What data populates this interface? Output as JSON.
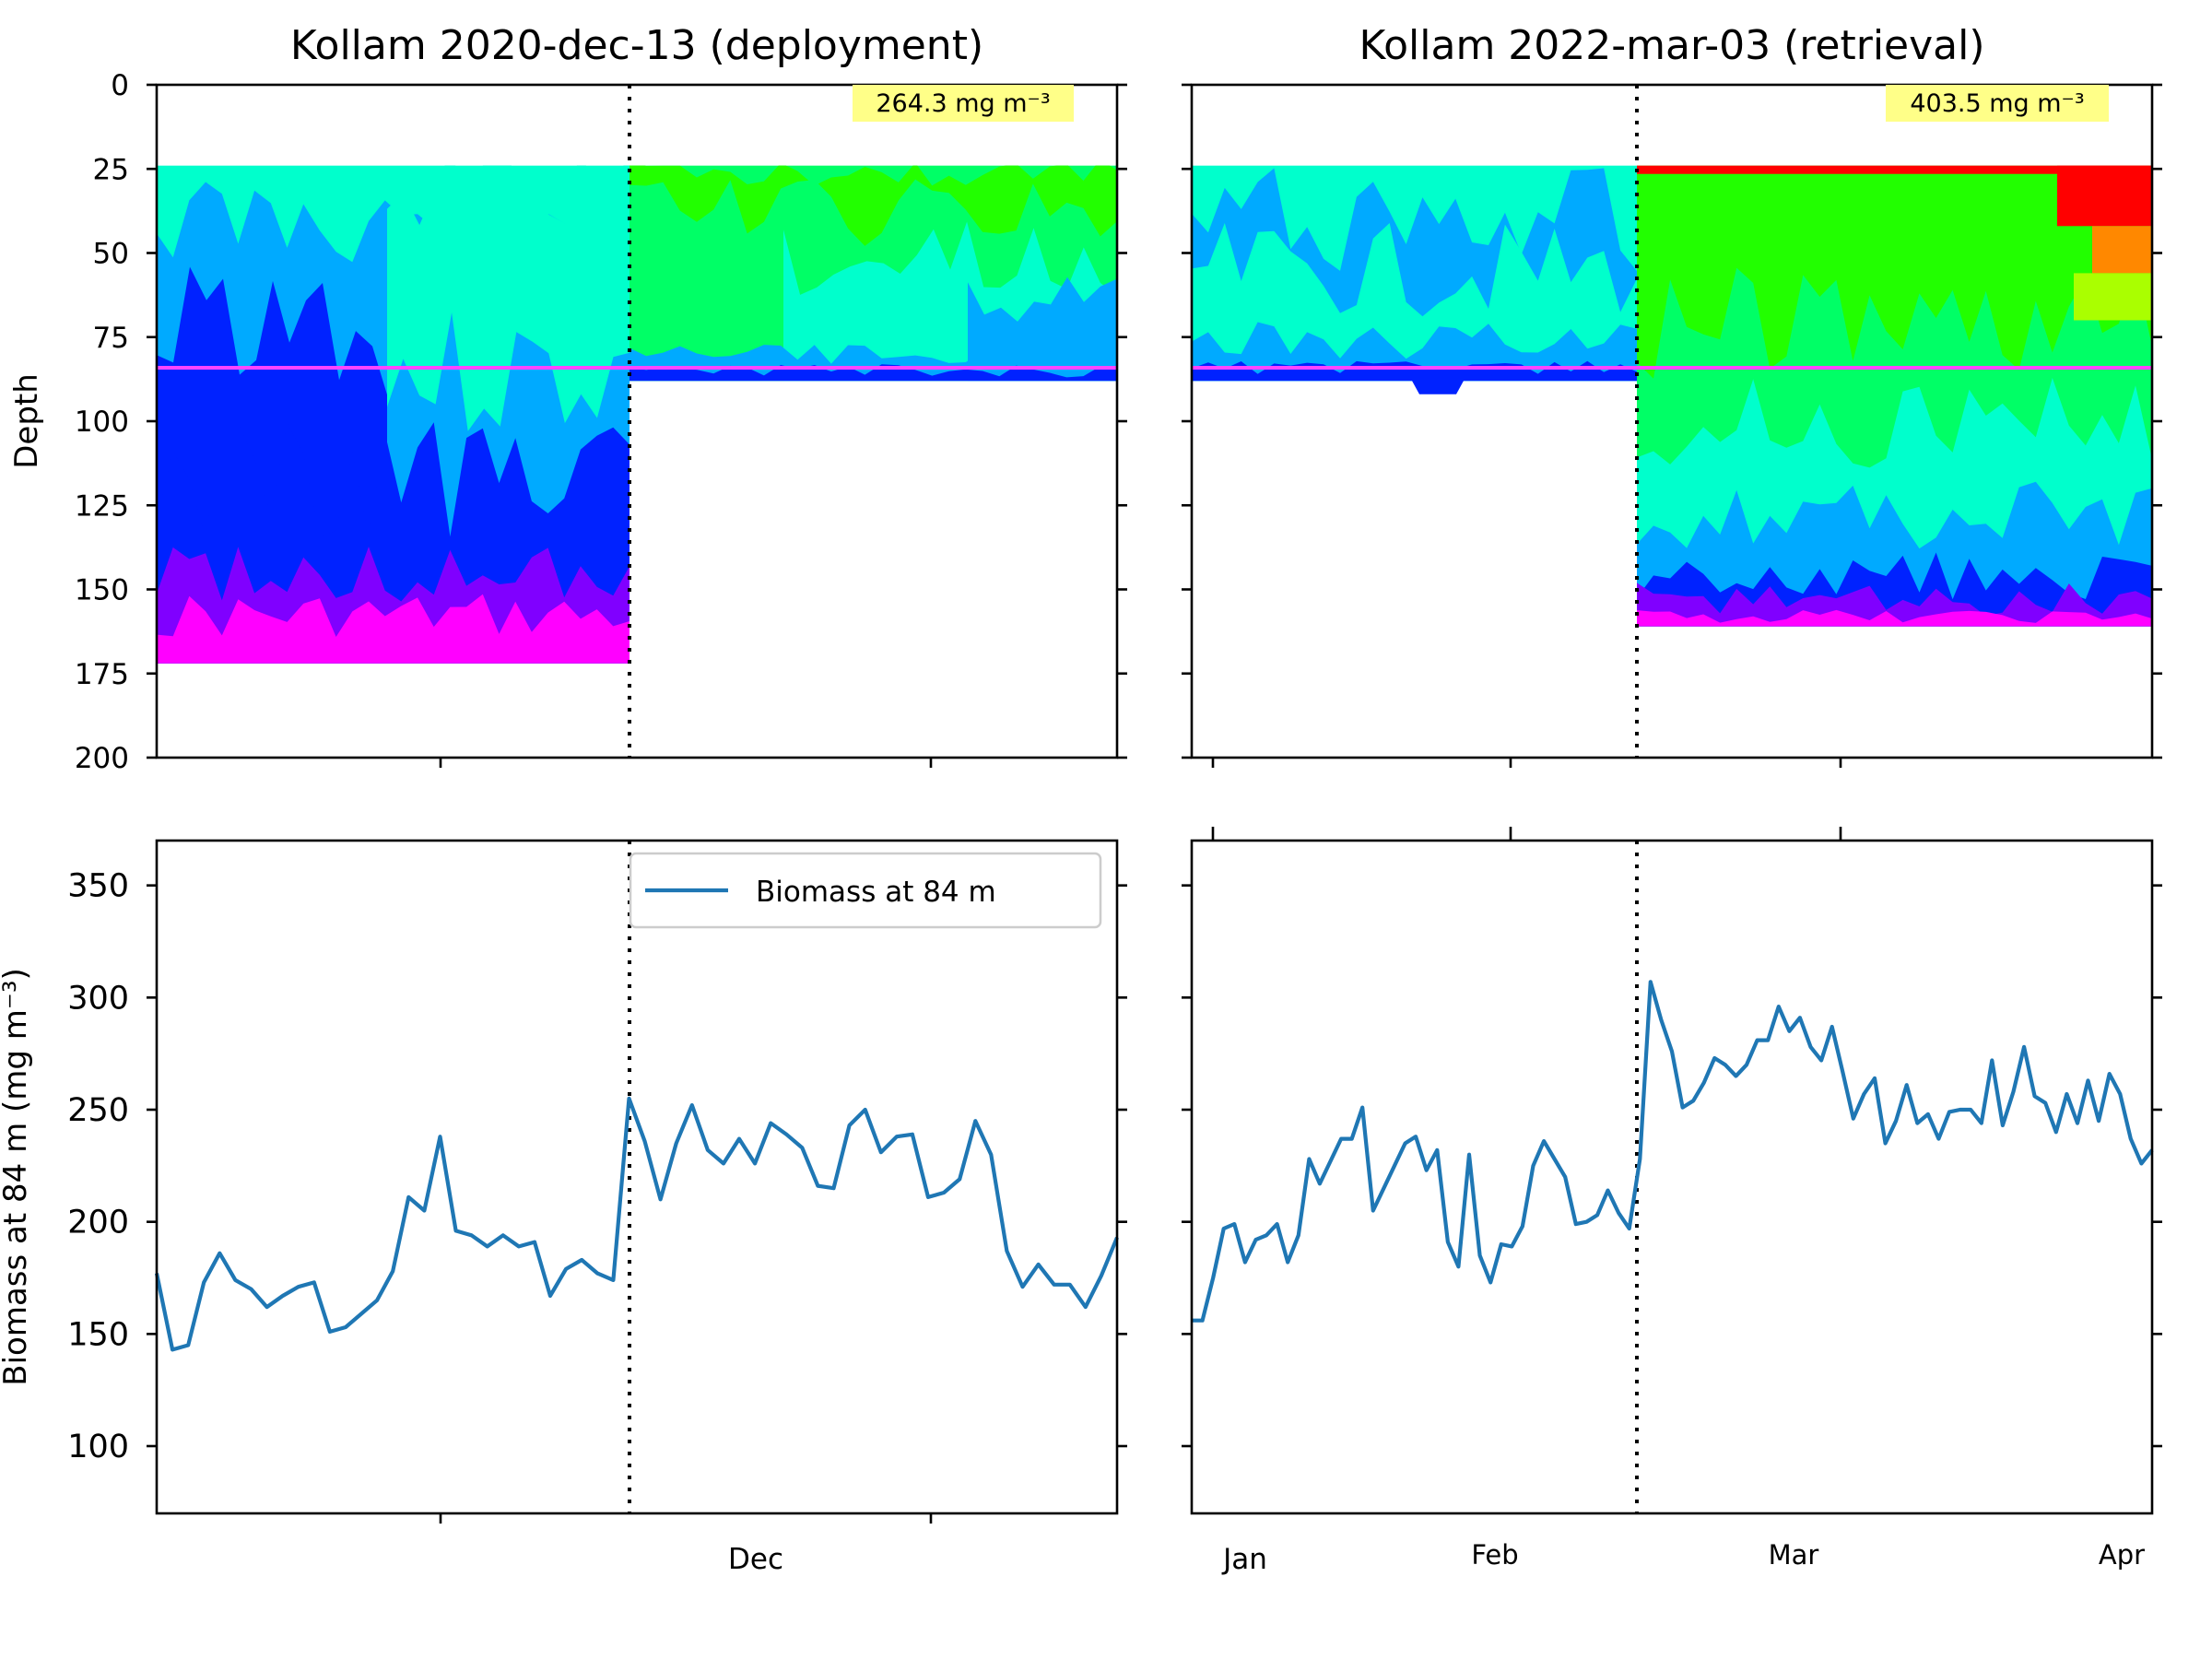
{
  "chart_data": [
    {
      "type": "heatmap",
      "title": "Kollam 2020-dec-13 (deployment)",
      "ylabel": "Depth",
      "ylim": [
        200,
        0
      ],
      "yticks": [
        0,
        25,
        50,
        75,
        100,
        125,
        150,
        175,
        200
      ],
      "annotation": "264.3 mg m⁻³",
      "reference_depth": 84,
      "event_marker": "2020-12-13",
      "grid": false,
      "colormap": [
        "#ff00ff",
        "#8000ff",
        "#0022ff",
        "#00aaff",
        "#00ffcc",
        "#00ff66",
        "#22ff00",
        "#aaff00",
        "#ffff00",
        "#ff8800",
        "#ff0000"
      ],
      "segments": [
        {
          "data_depth_range": [
            24,
            172
          ],
          "dominant_level_by_depth": [
            {
              "depth": 30,
              "level": 3.6
            },
            {
              "depth": 60,
              "level": 3.3
            },
            {
              "depth": 90,
              "level": 2.6
            },
            {
              "depth": 120,
              "level": 2.4
            },
            {
              "depth": 140,
              "level": 2.0
            },
            {
              "depth": 160,
              "level": 0.9
            }
          ]
        },
        {
          "data_depth_range": [
            24,
            88
          ],
          "dominant_level_by_depth": [
            {
              "depth": 30,
              "level": 5.5
            },
            {
              "depth": 55,
              "level": 4.9
            },
            {
              "depth": 80,
              "level": 4.1
            }
          ]
        }
      ]
    },
    {
      "type": "heatmap",
      "title": "Kollam 2022-mar-03 (retrieval)",
      "ylim": [
        200,
        0
      ],
      "annotation": "403.5 mg m⁻³",
      "reference_depth": 84,
      "event_marker": "2022-02-14",
      "grid": false,
      "segments": [
        {
          "data_depth_range": [
            24,
            88
          ],
          "dominant_level_by_depth": [
            {
              "depth": 30,
              "level": 4.0
            },
            {
              "depth": 60,
              "level": 3.8
            },
            {
              "depth": 84,
              "level": 2.8
            }
          ]
        },
        {
          "data_depth_range": [
            24,
            161
          ],
          "dominant_level_by_depth": [
            {
              "depth": 26,
              "level": 10.0
            },
            {
              "depth": 45,
              "level": 6.0
            },
            {
              "depth": 80,
              "level": 5.3
            },
            {
              "depth": 110,
              "level": 4.2
            },
            {
              "depth": 140,
              "level": 3.3
            },
            {
              "depth": 155,
              "level": 1.3
            }
          ]
        }
      ]
    },
    {
      "type": "line",
      "ylabel": "Biomass at 84 m (mg m⁻³)",
      "ylim": [
        70,
        370
      ],
      "yticks": [
        100,
        150,
        200,
        250,
        300,
        350
      ],
      "xtick_labels": [
        "",
        "Dec",
        ""
      ],
      "legend": "top-right",
      "event_marker_index": 30,
      "series": [
        {
          "name": "Biomass at 84 m",
          "color": "#1f77b4",
          "values": [
            177,
            143,
            145,
            173,
            186,
            174,
            170,
            162,
            167,
            171,
            173,
            151,
            153,
            159,
            165,
            178,
            211,
            205,
            238,
            196,
            194,
            189,
            194,
            189,
            191,
            167,
            179,
            183,
            177,
            174,
            255,
            236,
            210,
            235,
            252,
            232,
            226,
            237,
            226,
            244,
            239,
            233,
            216,
            215,
            243,
            250,
            231,
            238,
            239,
            211,
            213,
            219,
            245,
            230,
            187,
            171,
            181,
            172,
            172,
            162,
            176,
            193
          ]
        }
      ]
    },
    {
      "type": "line",
      "ylim": [
        70,
        370
      ],
      "xtick_labels": [
        "Jan",
        "Feb",
        "Mar",
        "Apr"
      ],
      "event_marker_index": 41,
      "series": [
        {
          "name": "Biomass at 84 m",
          "color": "#1f77b4",
          "values": [
            156,
            156,
            175,
            197,
            199,
            182,
            192,
            194,
            199,
            182,
            194,
            228,
            217,
            227,
            237,
            237,
            251,
            205,
            215,
            225,
            235,
            238,
            223,
            232,
            191,
            180,
            230,
            185,
            173,
            190,
            189,
            198,
            225,
            236,
            228,
            220,
            199,
            200,
            203,
            214,
            204,
            197,
            228,
            307,
            290,
            276,
            251,
            254,
            262,
            273,
            270,
            265,
            270,
            281,
            281,
            296,
            285,
            291,
            278,
            272,
            287,
            267,
            246,
            257,
            264,
            235,
            245,
            261,
            244,
            248,
            237,
            249,
            250,
            250,
            244,
            272,
            243,
            258,
            278,
            256,
            253,
            240,
            257,
            244,
            263,
            245,
            266,
            257,
            237,
            226,
            232
          ]
        }
      ]
    }
  ],
  "panels": {
    "tl_title": "Kollam 2020-dec-13 (deployment)",
    "tr_title": "Kollam 2022-mar-03 (retrieval)",
    "tl_annot": "264.3 mg m⁻³",
    "tr_annot": "403.5 mg m⁻³",
    "depth_label": "Depth",
    "biomass_label": "Biomass at 84 m (mg m⁻³)",
    "legend_label": "Biomass at 84 m",
    "depth_ticks": [
      "0",
      "25",
      "50",
      "75",
      "100",
      "125",
      "150",
      "175",
      "200"
    ],
    "biomass_ticks": [
      "350",
      "300",
      "250",
      "200",
      "150",
      "100"
    ],
    "bl_xlabel": "Dec",
    "br_xlabels": [
      "Jan",
      "Feb",
      "Mar",
      "Apr"
    ]
  }
}
